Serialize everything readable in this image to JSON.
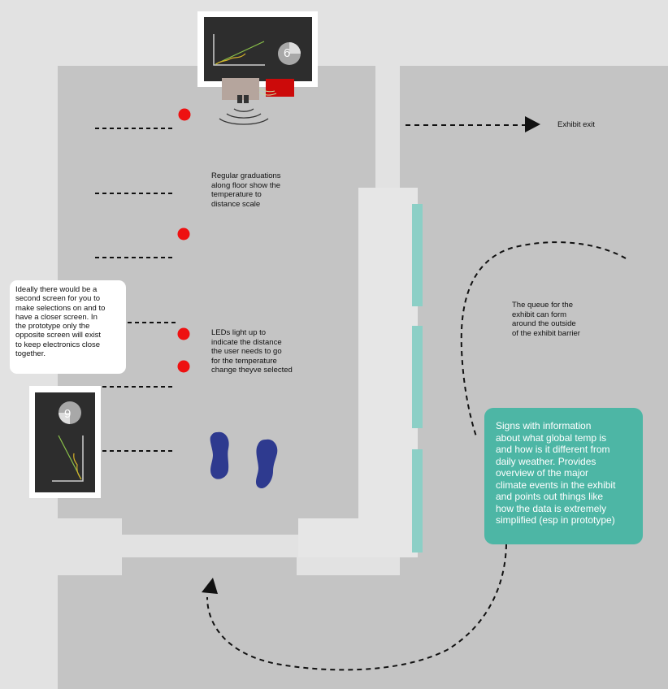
{
  "colors": {
    "background": "#e2e2e2",
    "room_floor": "#c4c4c4",
    "barrier": "#e6e6e6",
    "sign_panel": "#8ccfc6",
    "signs_box": "#4db6a5",
    "led": "#ee1111",
    "footprint": "#2e3a8f",
    "screen": "#2d2d2d",
    "sensor_box": "#b5a59d",
    "controller_box": "#cc0a0a"
  },
  "labels": {
    "exhibit_exit": "Exhibit exit",
    "graduations": "Regular graduations\nalong floor show the\ntemperature to\ndistance scale",
    "queue": "The queue for the\nexhibit can form\naround the outside\nof the exhibit barrier",
    "leds": "LEDs light up to\nindicate the distance\nthe user needs to go\nfor the temperature\nchange theyve selected",
    "second_screen": "Ideally there would be a\nsecond screen for you to\nmake selections on and to\nhave a closer screen. In\nthe prototype only the\nopposite screen will exist\nto keep electronics close\ntogether.",
    "signs": "Signs with information\nabout what global temp is\nand how is it different from\ndaily weather. Provides\noverview of the major\nclimate events in the exhibit\nand points out things like\nhow the data is extremely\nsimplified (esp in prototype)"
  },
  "screens": {
    "main_screen_number": "6",
    "second_screen_number": "6"
  },
  "icons": {
    "led": "red-dot",
    "footprint": "footprint-shape",
    "arrow": "triangle-arrowhead",
    "sensor_waves": "ultrasonic-waves"
  }
}
